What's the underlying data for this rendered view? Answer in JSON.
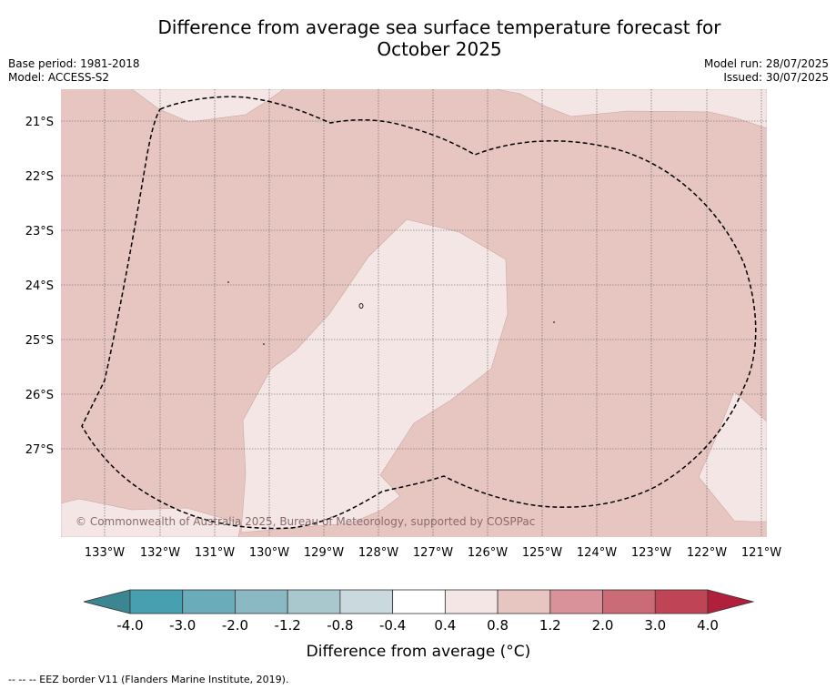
{
  "header": {
    "title_line1": "Difference from average sea surface temperature forecast for",
    "title_line2": "October 2025",
    "base_period": "Base period: 1981-2018",
    "model": "Model: ACCESS-S2",
    "model_run": "Model run: 28/07/2025",
    "issued": "Issued: 30/07/2025"
  },
  "map": {
    "lat_labels": [
      "21°S",
      "22°S",
      "23°S",
      "24°S",
      "25°S",
      "26°S",
      "27°S"
    ],
    "lon_labels": [
      "133°W",
      "132°W",
      "131°W",
      "130°W",
      "129°W",
      "128°W",
      "127°W",
      "126°W",
      "125°W",
      "124°W",
      "123°W",
      "122°W",
      "121°W"
    ],
    "copyright": "© Commonwealth of Australia 2025, Bureau of Meteorology, supported by COSPPac",
    "colors": {
      "anomaly_0_4_to_0_8": "#f4e6e5",
      "anomaly_0_8_to_1_2": "#e7c6c2",
      "eez_border": "#000000"
    }
  },
  "colorbar": {
    "ticks": [
      "-4.0",
      "-3.0",
      "-2.0",
      "-1.2",
      "-0.8",
      "-0.4",
      "0.4",
      "0.8",
      "1.2",
      "2.0",
      "3.0",
      "4.0"
    ],
    "colors": [
      "#3b8691",
      "#46a0b0",
      "#6aacba",
      "#8ab8c3",
      "#a9c8cd",
      "#c9d9dd",
      "#ffffff",
      "#f4e6e5",
      "#e7c6c2",
      "#d9929a",
      "#cb6b75",
      "#bf4556",
      "#b01f3b"
    ],
    "label": "Difference from average (°C)"
  },
  "footnote": "--  --  -- EEZ border V11 (Flanders Marine Institute, 2019)."
}
